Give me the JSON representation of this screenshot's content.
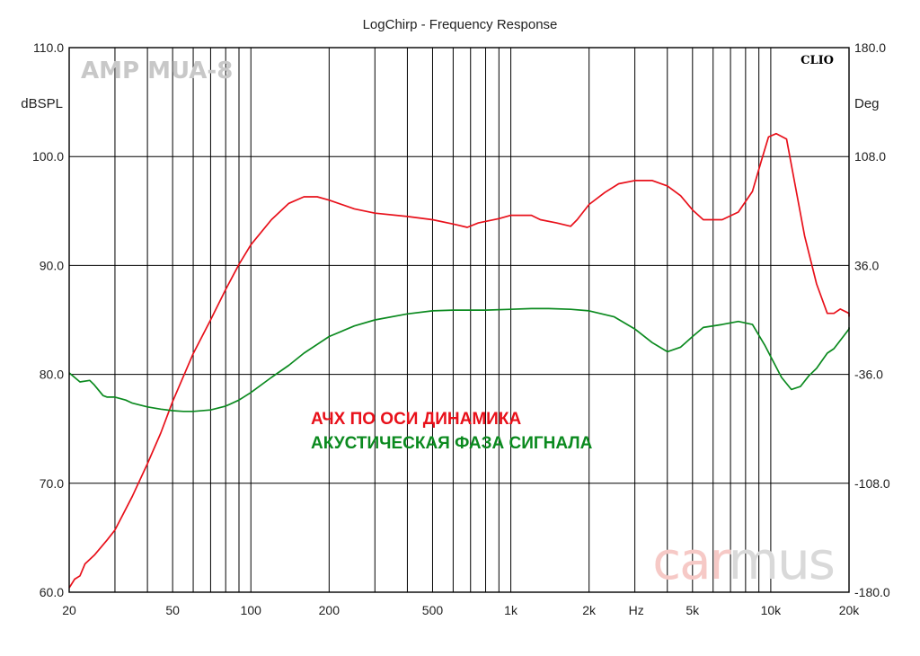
{
  "chart_data": {
    "type": "line",
    "title": "LogChirp - Frequency Response",
    "x_unit_label": "Hz",
    "x_scale": "log",
    "xlim": [
      20,
      20000
    ],
    "x_tick_labels": [
      {
        "value": 20,
        "label": "20"
      },
      {
        "value": 50,
        "label": "50"
      },
      {
        "value": 100,
        "label": "100"
      },
      {
        "value": 200,
        "label": "200"
      },
      {
        "value": 500,
        "label": "500"
      },
      {
        "value": 1000,
        "label": "1k"
      },
      {
        "value": 2000,
        "label": "2k"
      },
      {
        "value": 5000,
        "label": "5k"
      },
      {
        "value": 10000,
        "label": "10k"
      },
      {
        "value": 20000,
        "label": "20k"
      }
    ],
    "y_left": {
      "label": "dBSPL",
      "ylim": [
        60,
        110
      ],
      "ticks": [
        "60.0",
        "70.0",
        "80.0",
        "90.0",
        "100.0",
        "110.0"
      ]
    },
    "y_right": {
      "label": "Deg",
      "ylim": [
        -180,
        180
      ],
      "ticks": [
        "-180.0",
        "-108.0",
        "-36.0",
        "36.0",
        "108.0",
        "180.0"
      ]
    },
    "grid": true,
    "watermark": "AMP MUA-8",
    "instrument_label": "CLIO",
    "brand": "carmus",
    "series": [
      {
        "name": "АЧХ ПО ОСИ ДИНАМИКА",
        "color": "#e8101a",
        "axis": "left",
        "points": [
          [
            20,
            60.4
          ],
          [
            21,
            61.2
          ],
          [
            22,
            61.5
          ],
          [
            23,
            62.6
          ],
          [
            25,
            63.4
          ],
          [
            28,
            64.8
          ],
          [
            30,
            65.7
          ],
          [
            35,
            68.8
          ],
          [
            40,
            71.8
          ],
          [
            45,
            74.6
          ],
          [
            50,
            77.5
          ],
          [
            60,
            81.9
          ],
          [
            70,
            85.0
          ],
          [
            80,
            87.8
          ],
          [
            90,
            90.1
          ],
          [
            100,
            91.9
          ],
          [
            120,
            94.2
          ],
          [
            140,
            95.7
          ],
          [
            160,
            96.3
          ],
          [
            180,
            96.3
          ],
          [
            200,
            96.0
          ],
          [
            250,
            95.2
          ],
          [
            300,
            94.8
          ],
          [
            400,
            94.5
          ],
          [
            500,
            94.2
          ],
          [
            600,
            93.8
          ],
          [
            680,
            93.5
          ],
          [
            750,
            93.9
          ],
          [
            900,
            94.3
          ],
          [
            1000,
            94.6
          ],
          [
            1200,
            94.6
          ],
          [
            1300,
            94.2
          ],
          [
            1500,
            93.9
          ],
          [
            1700,
            93.6
          ],
          [
            1800,
            94.2
          ],
          [
            2000,
            95.6
          ],
          [
            2300,
            96.7
          ],
          [
            2600,
            97.5
          ],
          [
            3000,
            97.8
          ],
          [
            3500,
            97.8
          ],
          [
            4000,
            97.3
          ],
          [
            4500,
            96.4
          ],
          [
            5000,
            95.1
          ],
          [
            5500,
            94.2
          ],
          [
            6500,
            94.2
          ],
          [
            7500,
            94.9
          ],
          [
            8500,
            96.8
          ],
          [
            9200,
            99.6
          ],
          [
            9800,
            101.8
          ],
          [
            10500,
            102.1
          ],
          [
            11500,
            101.6
          ],
          [
            12500,
            97.0
          ],
          [
            13500,
            92.7
          ],
          [
            15000,
            88.3
          ],
          [
            16500,
            85.6
          ],
          [
            17500,
            85.6
          ],
          [
            18500,
            86.0
          ],
          [
            20000,
            85.6
          ],
          [
            21000,
            85.3
          ]
        ]
      },
      {
        "name": "АКУСТИЧЕСКАЯ ФАЗА СИГНАЛА",
        "color": "#0b8a1f",
        "axis": "right",
        "points": [
          [
            20,
            -35
          ],
          [
            22,
            -41
          ],
          [
            24,
            -40
          ],
          [
            25,
            -43
          ],
          [
            27,
            -50
          ],
          [
            28,
            -51
          ],
          [
            30,
            -51
          ],
          [
            33,
            -53
          ],
          [
            35,
            -55
          ],
          [
            40,
            -57.5
          ],
          [
            45,
            -59
          ],
          [
            50,
            -60
          ],
          [
            55,
            -60.5
          ],
          [
            60,
            -60.5
          ],
          [
            70,
            -59.5
          ],
          [
            80,
            -57
          ],
          [
            90,
            -53
          ],
          [
            100,
            -48
          ],
          [
            120,
            -38
          ],
          [
            140,
            -30
          ],
          [
            160,
            -22
          ],
          [
            200,
            -11
          ],
          [
            250,
            -4
          ],
          [
            300,
            0
          ],
          [
            400,
            4
          ],
          [
            500,
            6
          ],
          [
            600,
            6.5
          ],
          [
            700,
            6.5
          ],
          [
            800,
            6.5
          ],
          [
            1000,
            7
          ],
          [
            1200,
            7.5
          ],
          [
            1400,
            7.5
          ],
          [
            1700,
            7
          ],
          [
            2000,
            6
          ],
          [
            2500,
            2
          ],
          [
            3000,
            -6
          ],
          [
            3500,
            -15
          ],
          [
            4000,
            -21
          ],
          [
            4500,
            -18
          ],
          [
            5000,
            -11
          ],
          [
            5500,
            -5
          ],
          [
            6500,
            -3
          ],
          [
            7500,
            -1
          ],
          [
            8500,
            -3
          ],
          [
            9500,
            -17
          ],
          [
            11000,
            -38
          ],
          [
            12000,
            -46
          ],
          [
            13000,
            -44
          ],
          [
            14000,
            -37
          ],
          [
            15000,
            -32
          ],
          [
            16500,
            -22
          ],
          [
            17500,
            -19
          ],
          [
            19000,
            -11
          ],
          [
            20000,
            -6
          ],
          [
            21000,
            -5
          ]
        ]
      }
    ]
  }
}
